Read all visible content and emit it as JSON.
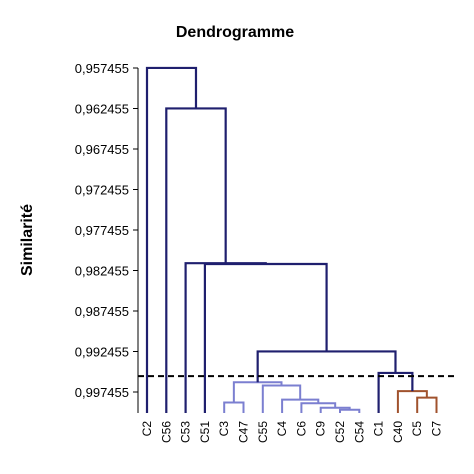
{
  "chart_data": {
    "type": "dendrogram",
    "title": "Dendrogramme",
    "ylabel": "Similarité",
    "xlabel": "",
    "ylim": [
      0.957455,
      1.0
    ],
    "y_ticks": [
      {
        "value": 0.957455,
        "label": "0,957455"
      },
      {
        "value": 0.962455,
        "label": "0,962455"
      },
      {
        "value": 0.967455,
        "label": "0,967455"
      },
      {
        "value": 0.972455,
        "label": "0,972455"
      },
      {
        "value": 0.977455,
        "label": "0,977455"
      },
      {
        "value": 0.982455,
        "label": "0,982455"
      },
      {
        "value": 0.987455,
        "label": "0,987455"
      },
      {
        "value": 0.992455,
        "label": "0,992455"
      },
      {
        "value": 0.997455,
        "label": "0,997455"
      }
    ],
    "leaves": [
      "C2",
      "C56",
      "C53",
      "C51",
      "C3",
      "C47",
      "C55",
      "C4",
      "C6",
      "C9",
      "C52",
      "C54",
      "C1",
      "C40",
      "C5",
      "C7"
    ],
    "cut_line": 0.9955,
    "colors": {
      "dark": "#1f1f6e",
      "light": "#7b7fd0",
      "brown": "#a0522d",
      "axis": "#000000"
    },
    "links": [
      {
        "left": "C3",
        "right": "C47",
        "height": 0.99875,
        "color": "light"
      },
      {
        "left": "C52",
        "right": "C54",
        "height": 0.99965,
        "color": "light"
      },
      {
        "left": "C9",
        "right": "C52+C54",
        "height": 0.9994,
        "color": "light"
      },
      {
        "left": "C6",
        "right": "C9+C52+C54",
        "height": 0.99885,
        "color": "light"
      },
      {
        "left": "C4",
        "right": "C6+C9+C52+C54",
        "height": 0.9984,
        "color": "light"
      },
      {
        "left": "C55",
        "right": "C4..C54",
        "height": 0.99665,
        "color": "light"
      },
      {
        "left": "C3+C47",
        "right": "C55..C54",
        "height": 0.99625,
        "color": "light"
      },
      {
        "left": "C5",
        "right": "C7",
        "height": 0.99815,
        "color": "brown"
      },
      {
        "left": "C40",
        "right": "C5+C7",
        "height": 0.99735,
        "color": "brown"
      },
      {
        "left": "C1",
        "right": "C40+C5+C7",
        "height": 0.9951,
        "color": "dark"
      },
      {
        "left": "C3..C54",
        "right": "C1..C7",
        "height": 0.99245,
        "color": "dark"
      },
      {
        "left": "C51",
        "right": "C3..C7",
        "height": 0.98165,
        "color": "dark"
      },
      {
        "left": "C53",
        "right": "C51..C7",
        "height": 0.98155,
        "color": "dark"
      },
      {
        "left": "C56",
        "right": "C53..C7",
        "height": 0.96245,
        "color": "dark"
      },
      {
        "left": "C2",
        "right": "C56..C7",
        "height": 0.95745,
        "color": "dark"
      }
    ]
  }
}
